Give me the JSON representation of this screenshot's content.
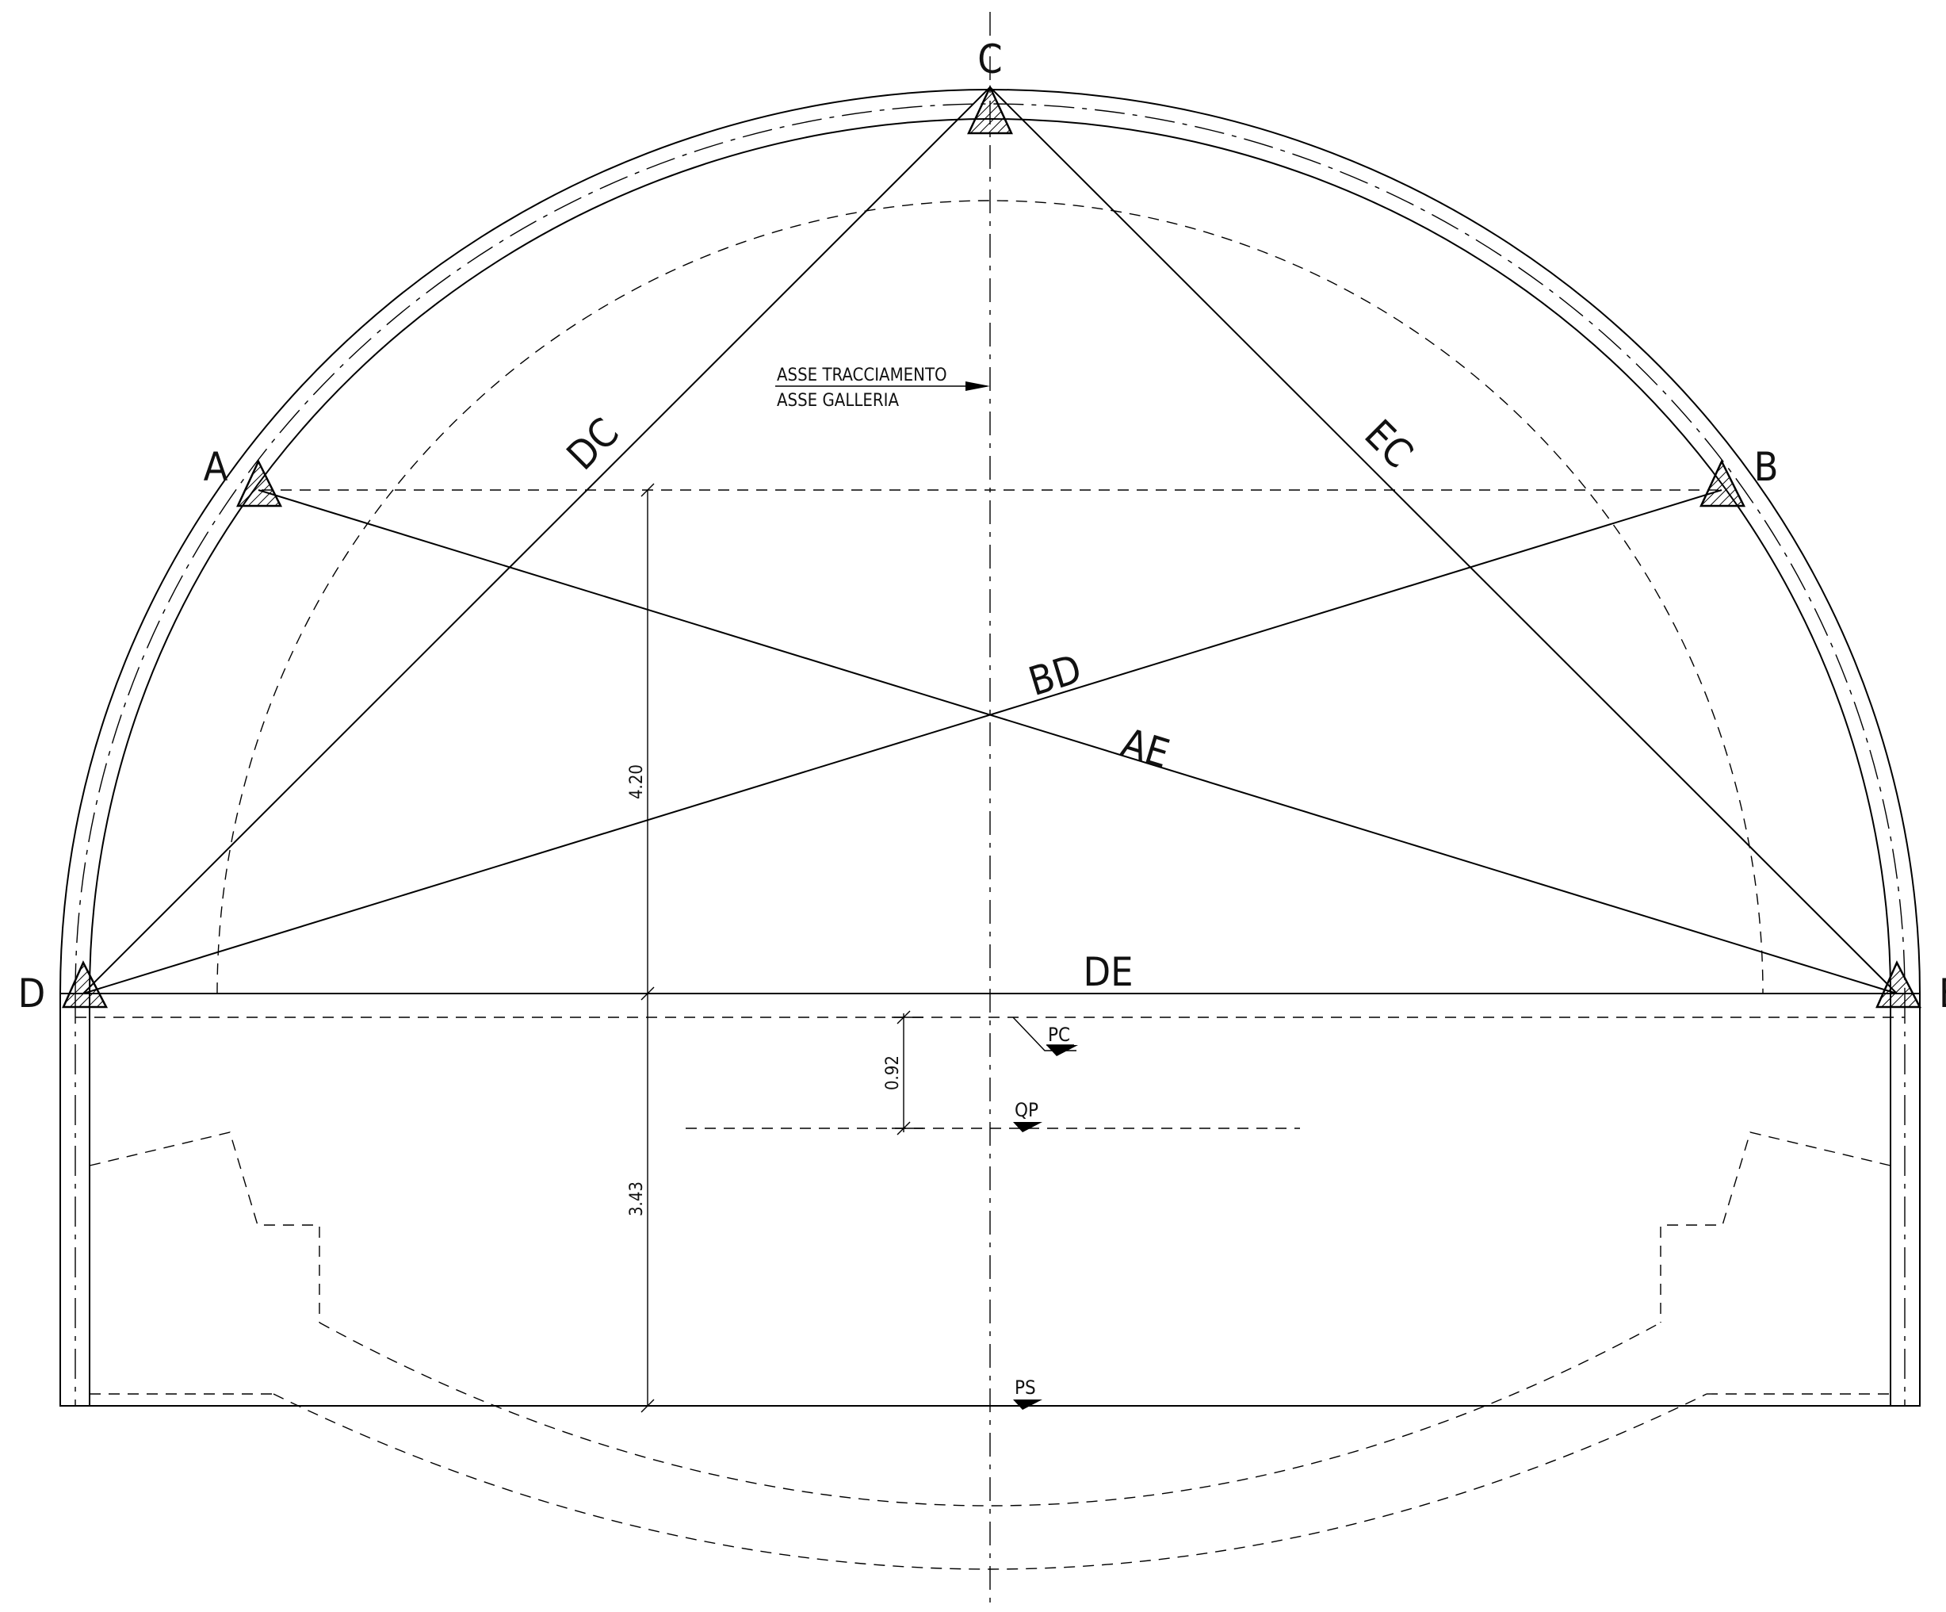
{
  "labels": {
    "point_c": "C",
    "point_a": "A",
    "point_b": "B",
    "point_d": "D",
    "point_e": "E",
    "line_dc": "DC",
    "line_ec": "EC",
    "line_bd": "BD",
    "line_ae": "AE",
    "line_de": "DE"
  },
  "axis_note": {
    "line1": "ASSE TRACCIAMENTO",
    "line2": "ASSE GALLERIA"
  },
  "levels": {
    "pc": "PC",
    "qp": "QP",
    "ps": "PS"
  },
  "dimensions": {
    "upper": "4.20",
    "lower": "3.43",
    "offset": "0.92"
  },
  "colors": {
    "line": "#000000",
    "background": "#ffffff"
  }
}
